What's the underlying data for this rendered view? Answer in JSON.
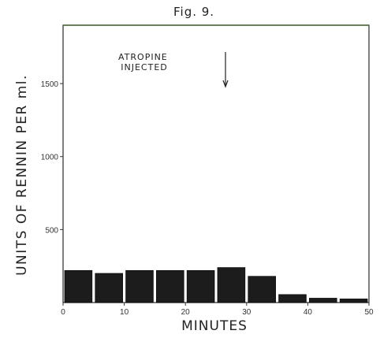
{
  "figure_label": "Fig. 9.",
  "annotation": {
    "line1": "ATROPINE",
    "line2": "INJECTED",
    "arrow_x": 26.5
  },
  "chart_data": {
    "type": "bar",
    "title": "Fig. 9.",
    "xlabel": "MINUTES",
    "ylabel": "UNITS OF RENNIN PER ml.",
    "xlim": [
      0,
      50
    ],
    "ylim": [
      0,
      1900
    ],
    "xticks": [
      0,
      10,
      20,
      30,
      40,
      50
    ],
    "yticks": [
      500,
      1000,
      1500
    ],
    "x": [
      2.5,
      7.5,
      12.5,
      17.5,
      22.5,
      27.5,
      32.5,
      37.5,
      42.5,
      47.5
    ],
    "values": [
      220,
      200,
      220,
      220,
      220,
      240,
      180,
      55,
      30,
      25
    ],
    "bar_width": 4.5,
    "bar_color": "#1c1c1c",
    "grid": false
  }
}
